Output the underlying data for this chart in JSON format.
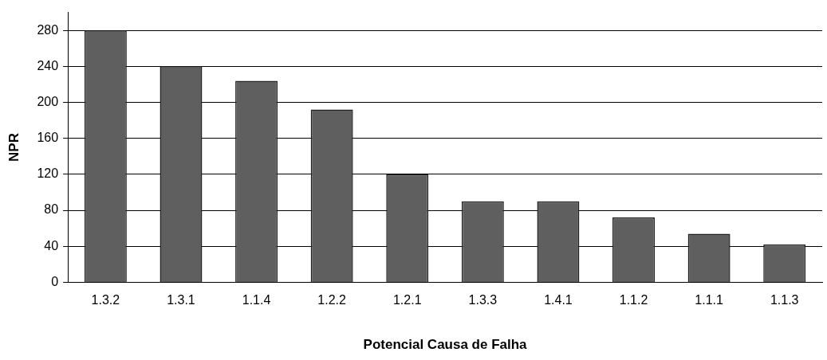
{
  "chart_data": {
    "type": "bar",
    "xlabel": "Potencial Causa de Falha",
    "ylabel": "NPR",
    "categories": [
      "1.3.2",
      "1.3.1",
      "1.1.4",
      "1.2.2",
      "1.2.1",
      "1.3.3",
      "1.4.1",
      "1.1.2",
      "1.1.1",
      "1.1.3"
    ],
    "values": [
      280,
      240,
      224,
      192,
      120,
      90,
      90,
      72,
      54,
      42
    ],
    "color": "#5f5f5f",
    "ylim": [
      0,
      300
    ],
    "yticks": [
      0,
      40,
      80,
      120,
      160,
      200,
      240,
      280
    ],
    "grid": "y",
    "legend": false
  }
}
